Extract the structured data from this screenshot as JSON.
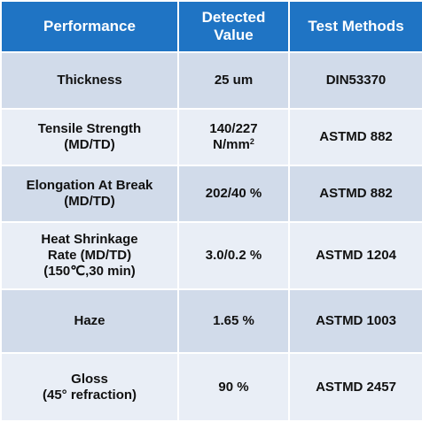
{
  "headers": {
    "performance": "Performance",
    "detected_line1": "Detected",
    "detected_line2": "Value",
    "test_methods": "Test Methods"
  },
  "rows": [
    {
      "property": [
        "Thickness"
      ],
      "value": [
        "25 um"
      ],
      "method": "DIN53370"
    },
    {
      "property": [
        "Tensile Strength",
        "(MD/TD)"
      ],
      "value": [
        "140/227",
        "N/mm"
      ],
      "value_sup": "2",
      "method": "ASTMD 882"
    },
    {
      "property": [
        "Elongation At Break",
        "(MD/TD)"
      ],
      "value": [
        "202/40 %"
      ],
      "method": "ASTMD 882"
    },
    {
      "property": [
        "Heat Shrinkage",
        "Rate (MD/TD)",
        "(150℃,30 min)"
      ],
      "value": [
        "3.0/0.2 %"
      ],
      "method": "ASTMD 1204"
    },
    {
      "property": [
        "Haze"
      ],
      "value": [
        "1.65 %"
      ],
      "method": "ASTMD 1003"
    },
    {
      "property": [
        "Gloss",
        "(45° refraction)"
      ],
      "value": [
        "90 %"
      ],
      "method": "ASTMD 2457"
    }
  ],
  "colors": {
    "header_bg": "#1f74c4",
    "row_band_dark": "#d1dbea",
    "row_band_light": "#e9eef6"
  }
}
